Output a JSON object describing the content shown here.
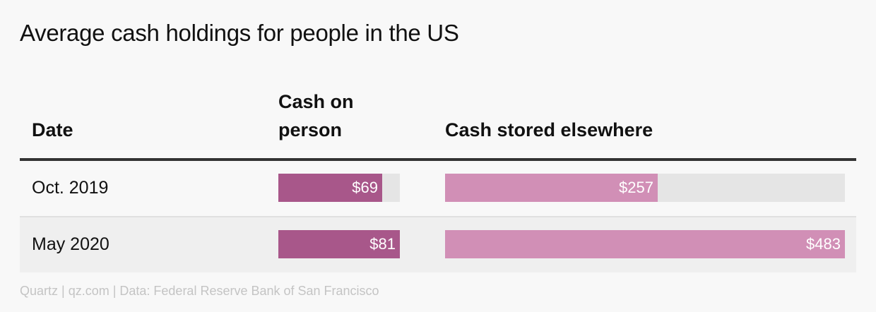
{
  "title": "Average cash holdings for people in the US",
  "columns": {
    "date": "Date",
    "cash_on_person": "Cash on person",
    "cash_elsewhere": "Cash stored elsewhere"
  },
  "footer": "Quartz | qz.com | Data: Federal Reserve Bank of San Francisco",
  "colors": {
    "cash_on_person": "#a8578a",
    "cash_elsewhere": "#d18fb6",
    "track": "#e5e5e5"
  },
  "chart_data": {
    "type": "bar",
    "categories": [
      "Oct. 2019",
      "May 2020"
    ],
    "series": [
      {
        "name": "Cash on person",
        "values": [
          69,
          81
        ],
        "labels": [
          "$69",
          "$81"
        ],
        "max": 81
      },
      {
        "name": "Cash stored elsewhere",
        "values": [
          257,
          483
        ],
        "labels": [
          "$257",
          "$483"
        ],
        "max": 483
      }
    ]
  }
}
